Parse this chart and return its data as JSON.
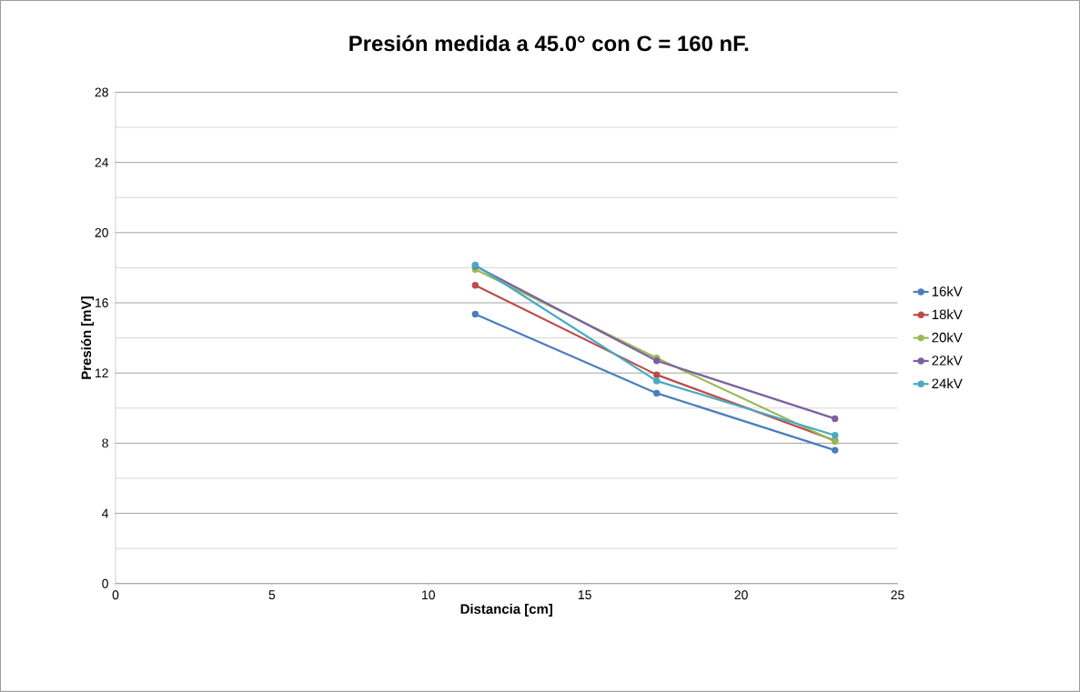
{
  "chart_data": {
    "type": "line",
    "title": "Presión medida a 45.0° con C = 160 nF.",
    "xlabel": "Distancia [cm]",
    "ylabel": "Presión [mV]",
    "x": [
      11.5,
      17.3,
      23
    ],
    "series": [
      {
        "name": "16kV",
        "color": "#4a7ebb",
        "values": [
          15.35,
          10.85,
          7.6
        ]
      },
      {
        "name": "18kV",
        "color": "#be4b48",
        "values": [
          17.0,
          11.9,
          8.15
        ]
      },
      {
        "name": "20kV",
        "color": "#98b954",
        "values": [
          17.9,
          12.85,
          8.1
        ]
      },
      {
        "name": "22kV",
        "color": "#7d60a0",
        "values": [
          18.1,
          12.7,
          9.4
        ]
      },
      {
        "name": "24kV",
        "color": "#46aac5",
        "values": [
          18.15,
          11.55,
          8.45
        ]
      }
    ],
    "xlim": [
      0,
      25
    ],
    "xticks": [
      0,
      5,
      10,
      15,
      20,
      25
    ],
    "ylim": [
      0,
      28
    ],
    "yticks": [
      0,
      {
        "value": 2,
        "label": null
      },
      4,
      {
        "value": 6,
        "label": null
      },
      8,
      {
        "value": 10,
        "label": null
      },
      12,
      {
        "value": 14,
        "label": null
      },
      16,
      {
        "value": 18,
        "label": null
      },
      20,
      {
        "value": 22,
        "label": null
      },
      24,
      {
        "value": 26,
        "label": null
      },
      28
    ],
    "grid": "y",
    "legend": "right",
    "marker": "circle",
    "line_style": "solid"
  }
}
